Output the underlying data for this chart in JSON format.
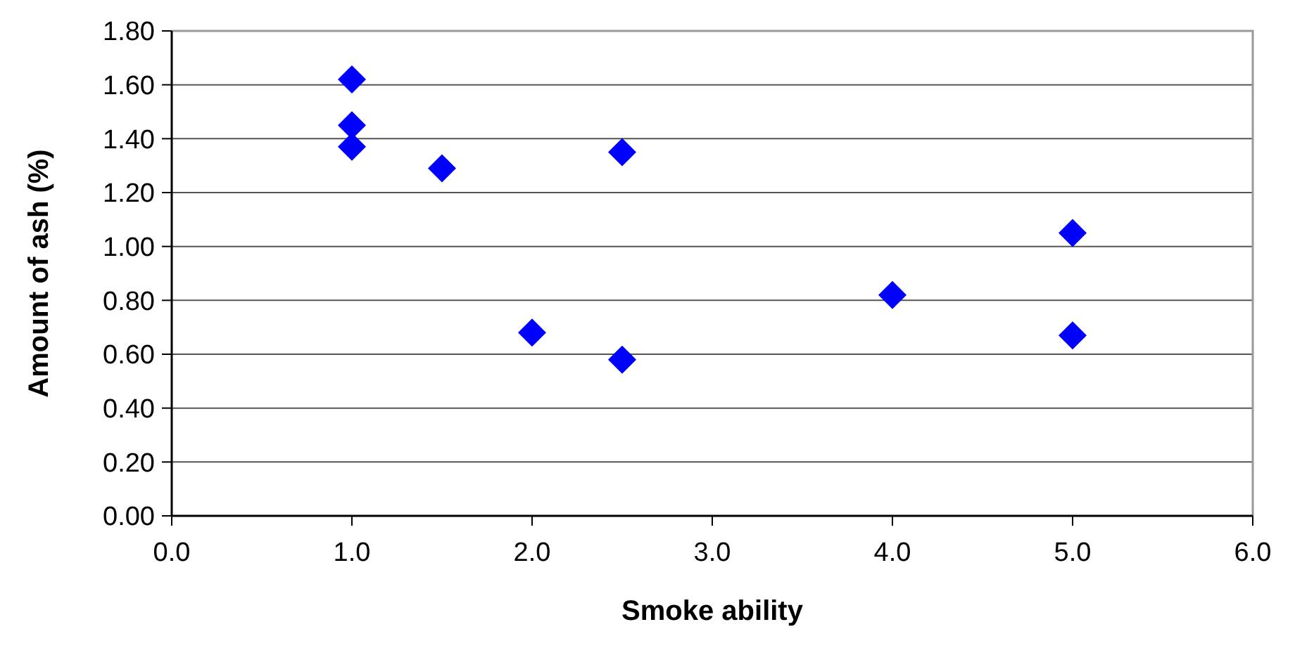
{
  "chart_data": {
    "type": "scatter",
    "xlabel": "Smoke ability",
    "ylabel": "Amount of ash (%)",
    "x": [
      1.0,
      1.0,
      1.0,
      1.5,
      2.5,
      2.0,
      2.5,
      4.0,
      5.0,
      5.0
    ],
    "series": [
      {
        "color": "#0000ff",
        "values": [
          1.62,
          1.45,
          1.37,
          1.29,
          1.35,
          0.68,
          0.58,
          0.82,
          1.05,
          0.67
        ]
      }
    ],
    "xlim": [
      0,
      6
    ],
    "xticks": [
      {
        "value": 0,
        "label": "0.0"
      },
      {
        "value": 1,
        "label": "1.0"
      },
      {
        "value": 2,
        "label": "2.0"
      },
      {
        "value": 3,
        "label": "3.0"
      },
      {
        "value": 4,
        "label": "4.0"
      },
      {
        "value": 5,
        "label": "5.0"
      },
      {
        "value": 6,
        "label": "6.0"
      }
    ],
    "ylim": [
      0,
      1.8
    ],
    "yticks": [
      {
        "value": 0,
        "label": "0.00"
      },
      {
        "value": 0.2,
        "label": "0.20"
      },
      {
        "value": 0.4,
        "label": "0.40"
      },
      {
        "value": 0.6,
        "label": "0.60"
      },
      {
        "value": 0.8,
        "label": "0.80"
      },
      {
        "value": 1,
        "label": "1.00"
      },
      {
        "value": 1.2,
        "label": "1.20"
      },
      {
        "value": 1.4,
        "label": "1.40"
      },
      {
        "value": 1.6,
        "label": "1.60"
      },
      {
        "value": 1.8,
        "label": "1.80"
      }
    ],
    "grid": "y",
    "marker": "diamond"
  }
}
